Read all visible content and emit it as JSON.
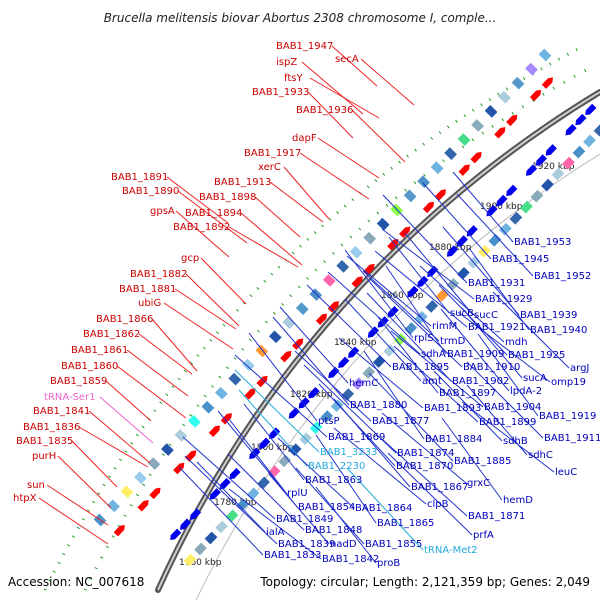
{
  "title": "Brucella melitensis biovar Abortus 2308 chromosome I, comple...",
  "accession": "Accession: NC_007618",
  "summary": "Topology: circular; Length: 2,121,359 bp; Genes: 2,049",
  "colors": {
    "forward_arrow": "#ff0000",
    "reverse_arrow": "#0000ee",
    "forward_label": "#cc0000",
    "reverse_label": "#0000bb",
    "trna_forward": "#ee66cc",
    "trna_reverse": "#22aadd",
    "backbone": "#888888",
    "gc_dots": "#229922"
  },
  "kbp_ticks": [
    "1920 kbp",
    "1900 kbp",
    "1880 kbp",
    "1860 kbp",
    "1840 kbp",
    "1820 kbp",
    "1800 kbp",
    "1780 kbp",
    "1760 kbp"
  ],
  "forward_labels": [
    "BAB1_1947",
    "secA",
    "ispZ",
    "ftsY",
    "BAB1_1933",
    "BAB1_1936",
    "dapF",
    "BAB1_1917",
    "xerC",
    "BAB1_1913",
    "BAB1_1891",
    "BAB1_1890",
    "BAB1_1898",
    "gpsA",
    "BAB1_1894",
    "BAB1_1892",
    "gcp",
    "BAB1_1882",
    "BAB1_1881",
    "ubiG",
    "BAB1_1866",
    "BAB1_1862",
    "BAB1_1861",
    "BAB1_1860",
    "BAB1_1859",
    "tRNA-Ser1",
    "BAB1_1841",
    "BAB1_1836",
    "BAB1_1835",
    "purH",
    "sun",
    "htpX"
  ],
  "reverse_labels": [
    "BAB1_1953",
    "BAB1_1945",
    "BAB1_1952",
    "BAB1_1931",
    "BAB1_1929",
    "sucB",
    "sucC",
    "BAB1_1939",
    "rimM",
    "BAB1_1921",
    "BAB1_1940",
    "rplS",
    "trmD",
    "mdh",
    "sdhA",
    "BAB1_1909",
    "BAB1_1925",
    "argJ",
    "BAB1_1895",
    "BAB1_1910",
    "sucA",
    "hemC",
    "amt",
    "BAB1_1902",
    "omp19",
    "BAB1_1897",
    "lpdA-2",
    "BAB1_1880",
    "BAB1_1893",
    "BAB1_1904",
    "BAB1_1919",
    "ptsP",
    "BAB1_1877",
    "BAB1_1899",
    "BAB1_1869",
    "BAB1_1884",
    "sdhB",
    "BAB1_1911",
    "BAB1_3233",
    "BAB1_1874",
    "sdhC",
    "BAB1_2230",
    "BAB1_1870",
    "BAB1_1885",
    "leuC",
    "BAB1_1863",
    "rplU",
    "BAB1_1867",
    "grxC",
    "clpB",
    "hemD",
    "BAB1_1854",
    "BAB1_1864",
    "BAB1_1871",
    "BAB1_1849",
    "BAB1_1865",
    "ialA",
    "BAB1_1848",
    "prfA",
    "BAB1_1839",
    "nadD",
    "BAB1_1855",
    "tRNA-Met2",
    "BAB1_1833",
    "BAB1_1842",
    "proB"
  ]
}
